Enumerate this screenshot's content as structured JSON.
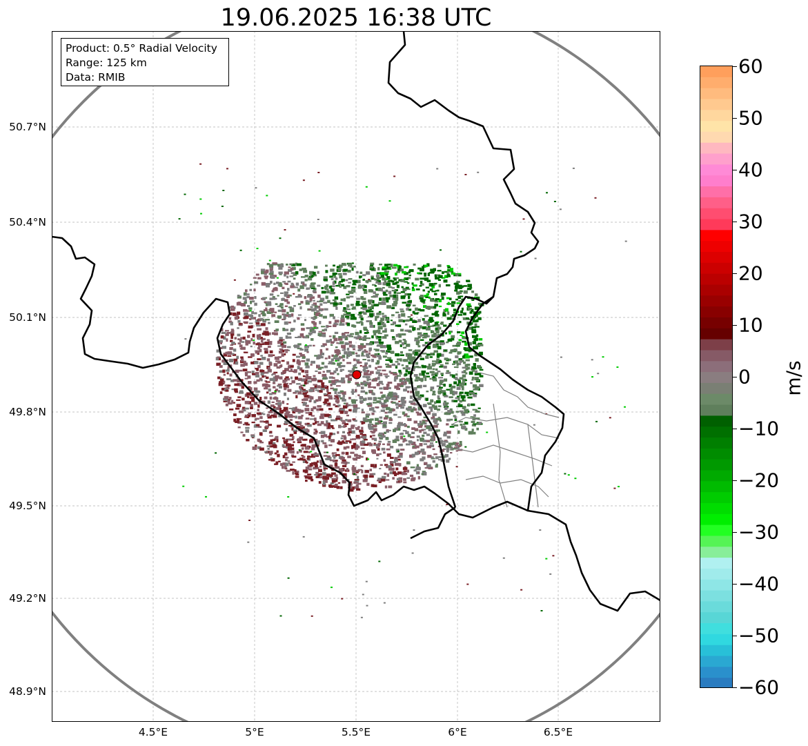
{
  "title": "19.06.2025 16:38 UTC",
  "info_box": {
    "product": "Product: 0.5° Radial Velocity",
    "range": "Range: 125 km",
    "source": "Data: RMIB"
  },
  "axes": {
    "lat_ticks": [
      "50.7°N",
      "50.4°N",
      "50.1°N",
      "49.8°N",
      "49.5°N",
      "49.2°N",
      "48.9°N"
    ],
    "lon_ticks": [
      "4.5°E",
      "5°E",
      "5.5°E",
      "6°E",
      "6.5°E"
    ]
  },
  "colorbar": {
    "unit": "m/s",
    "ticks": [
      "60",
      "50",
      "40",
      "30",
      "20",
      "10",
      "0",
      "−10",
      "−20",
      "−30",
      "−40",
      "−50",
      "−60"
    ],
    "range": [
      -60,
      60
    ],
    "colors_top_to_bottom": [
      "#ff9f5c",
      "#ffad6d",
      "#ffbb7e",
      "#ffc98f",
      "#ffd79e",
      "#ffe4a8",
      "#ffd9b0",
      "#ffb8c0",
      "#ffa0cc",
      "#ff8ad6",
      "#ff7ecc",
      "#ff6fa8",
      "#ff5f88",
      "#ff4d70",
      "#ff3a5a",
      "#ff0000",
      "#ee0000",
      "#dd0000",
      "#cc0000",
      "#bb0000",
      "#aa0000",
      "#990000",
      "#880000",
      "#770000",
      "#660000",
      "#7d3f48",
      "#865a66",
      "#8c6e7a",
      "#8a7d80",
      "#7a7f74",
      "#6c8a68",
      "#5f7f5c",
      "#006000",
      "#007000",
      "#007f00",
      "#008c00",
      "#009900",
      "#00aa00",
      "#00bb00",
      "#00cc00",
      "#00dd00",
      "#00ee00",
      "#22ff22",
      "#55f455",
      "#88ee99",
      "#b0f0f0",
      "#a0ebeb",
      "#8ee6e6",
      "#7ce0e0",
      "#6adbdb",
      "#58d6d6",
      "#40dede",
      "#30d8e0",
      "#28c0d8",
      "#2aa8d2",
      "#2a90cc",
      "#2a7cc0"
    ]
  },
  "map": {
    "radar_site": "RMIB radar",
    "radar_color": "#e00000",
    "range_ring_color": "#808080",
    "echo_colors": {
      "outbound_dark_red": "#7a1f25",
      "outbound_muted": "#8a5e68",
      "zero": "#7d7d7d",
      "inbound_muted": "#5f7f5c",
      "inbound_green": "#006600",
      "inbound_bright": "#00cc00"
    }
  }
}
